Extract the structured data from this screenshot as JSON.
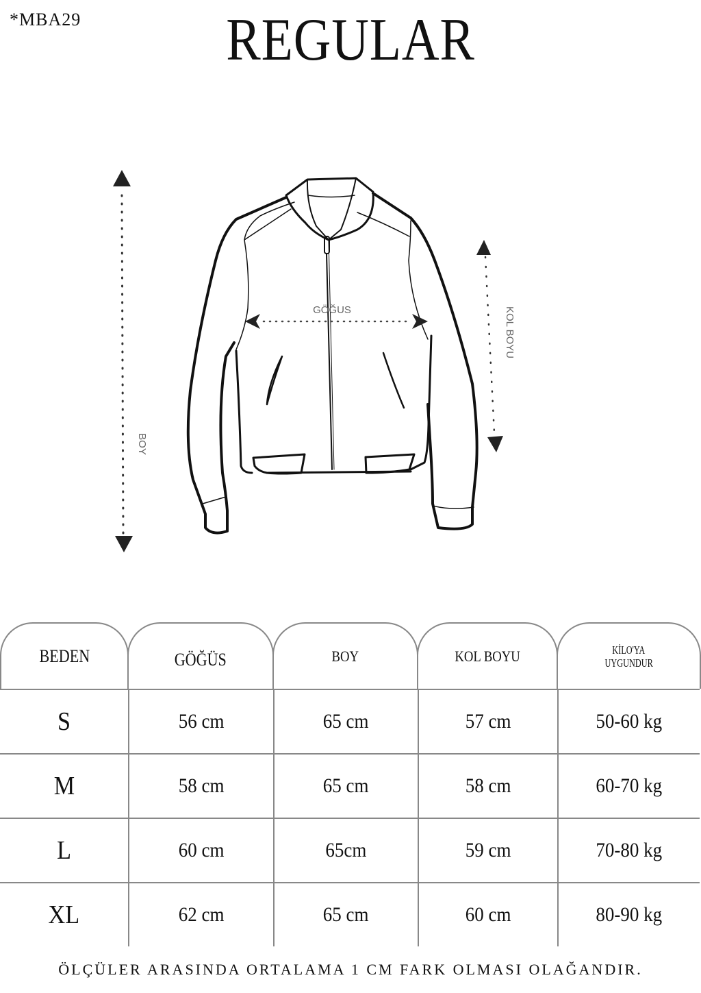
{
  "header": {
    "code": "*MBA29",
    "title": "REGULAR"
  },
  "diagram": {
    "chest_label": "GÖĞUS",
    "length_label": "BOY",
    "sleeve_label": "KOL BOYU",
    "icons": [
      "jacket-outline-icon",
      "arrow-vertical-icon",
      "arrow-horizontal-icon"
    ]
  },
  "table": {
    "headers": [
      "BEDEN",
      "GÖĞÜS",
      "BOY",
      "KOL BOYU",
      "KİLO'YA UYGUNDUR"
    ],
    "header_lines": {
      "kilo_1": "KİLO'YA",
      "kilo_2": "UYGUNDUR"
    },
    "rows": [
      [
        "S",
        "56 cm",
        "65 cm",
        "57  cm",
        "50-60 kg"
      ],
      [
        "M",
        "58 cm",
        "65 cm",
        "58 cm",
        "60-70 kg"
      ],
      [
        "L",
        "60 cm",
        "65cm",
        "59 cm",
        "70-80 kg"
      ],
      [
        "XL",
        "62 cm",
        "65 cm",
        "60 cm",
        "80-90 kg"
      ]
    ]
  },
  "footer": {
    "note": "ÖLÇÜLER ARASINDA ORTALAMA 1 CM FARK OLMASI OLAĞANDIR."
  }
}
